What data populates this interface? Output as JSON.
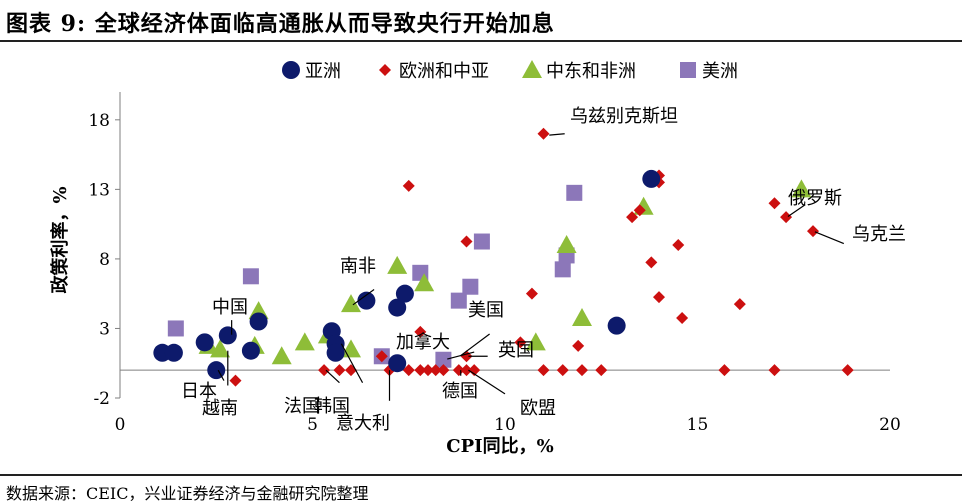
{
  "header": {
    "title": "图表 9:  全球经济体面临高通胀从而导致央行开始加息"
  },
  "footer": {
    "source": "数据来源：CEIC，兴业证券经济与金融研究院整理"
  },
  "chart_data": {
    "type": "scatter",
    "xlabel": "CPI同比，%",
    "ylabel": "政策利率，%",
    "xlim": [
      0,
      20
    ],
    "ylim": [
      -2,
      20
    ],
    "xticks": [
      0,
      5,
      10,
      15,
      20
    ],
    "yticks": [
      -2,
      3,
      8,
      13,
      18
    ],
    "legend_position": "top",
    "series": [
      {
        "name": "亚洲",
        "marker": "circle",
        "color": "#0d1a6b",
        "points": [
          {
            "x": 1.1,
            "y": 1.25
          },
          {
            "x": 1.4,
            "y": 1.25
          },
          {
            "x": 2.2,
            "y": 2.0
          },
          {
            "x": 2.8,
            "y": 2.5
          },
          {
            "x": 2.5,
            "y": 0.0
          },
          {
            "x": 3.4,
            "y": 1.4
          },
          {
            "x": 3.6,
            "y": 3.5
          },
          {
            "x": 5.5,
            "y": 2.8
          },
          {
            "x": 5.6,
            "y": 1.9
          },
          {
            "x": 5.6,
            "y": 1.25
          },
          {
            "x": 6.4,
            "y": 5.0
          },
          {
            "x": 7.2,
            "y": 4.5
          },
          {
            "x": 7.4,
            "y": 5.5
          },
          {
            "x": 7.2,
            "y": 0.5
          },
          {
            "x": 12.9,
            "y": 3.2
          },
          {
            "x": 13.8,
            "y": 13.75
          }
        ]
      },
      {
        "name": "欧洲和中亚",
        "marker": "diamond",
        "color": "#cc1010",
        "points": [
          {
            "x": 11.0,
            "y": 17.0
          },
          {
            "x": 7.5,
            "y": 13.25
          },
          {
            "x": 14.0,
            "y": 14.0
          },
          {
            "x": 14.0,
            "y": 13.5
          },
          {
            "x": 13.3,
            "y": 11.0
          },
          {
            "x": 13.5,
            "y": 11.5
          },
          {
            "x": 17.0,
            "y": 12.0
          },
          {
            "x": 17.3,
            "y": 11.0
          },
          {
            "x": 18.0,
            "y": 10.0
          },
          {
            "x": 14.5,
            "y": 9.0
          },
          {
            "x": 13.8,
            "y": 7.75
          },
          {
            "x": 9.0,
            "y": 9.25
          },
          {
            "x": 10.7,
            "y": 5.5
          },
          {
            "x": 14.0,
            "y": 5.25
          },
          {
            "x": 16.1,
            "y": 4.75
          },
          {
            "x": 14.6,
            "y": 3.75
          },
          {
            "x": 7.8,
            "y": 2.75
          },
          {
            "x": 10.4,
            "y": 2.0
          },
          {
            "x": 11.9,
            "y": 1.75
          },
          {
            "x": 12.0,
            "y": 0.0
          },
          {
            "x": 11.5,
            "y": 0.0
          },
          {
            "x": 11.0,
            "y": 0.0
          },
          {
            "x": 12.5,
            "y": 0.0
          },
          {
            "x": 7.0,
            "y": 0.0
          },
          {
            "x": 7.5,
            "y": 0.0
          },
          {
            "x": 7.8,
            "y": 0.0
          },
          {
            "x": 8.0,
            "y": 0.0
          },
          {
            "x": 8.2,
            "y": 0.0
          },
          {
            "x": 8.4,
            "y": 0.0
          },
          {
            "x": 8.8,
            "y": 0.0
          },
          {
            "x": 9.0,
            "y": 0.0
          },
          {
            "x": 9.2,
            "y": 0.0
          },
          {
            "x": 15.7,
            "y": 0.0
          },
          {
            "x": 17.0,
            "y": 0.0
          },
          {
            "x": 18.9,
            "y": 0.0
          },
          {
            "x": 5.3,
            "y": 0.0
          },
          {
            "x": 5.7,
            "y": 0.0
          },
          {
            "x": 6.0,
            "y": 0.0
          },
          {
            "x": 6.8,
            "y": 1.0
          },
          {
            "x": 9.0,
            "y": 1.0
          },
          {
            "x": 3.0,
            "y": -0.75
          }
        ]
      },
      {
        "name": "中东和非洲",
        "marker": "triangle",
        "color": "#8ebd38",
        "points": [
          {
            "x": 17.7,
            "y": 13.0
          },
          {
            "x": 13.6,
            "y": 11.75
          },
          {
            "x": 11.6,
            "y": 9.0
          },
          {
            "x": 7.2,
            "y": 7.5
          },
          {
            "x": 7.9,
            "y": 6.25
          },
          {
            "x": 6.0,
            "y": 4.75
          },
          {
            "x": 3.6,
            "y": 4.25
          },
          {
            "x": 12.0,
            "y": 3.75
          },
          {
            "x": 5.4,
            "y": 2.5
          },
          {
            "x": 4.8,
            "y": 2.0
          },
          {
            "x": 10.8,
            "y": 2.0
          },
          {
            "x": 3.5,
            "y": 1.75
          },
          {
            "x": 2.3,
            "y": 1.75
          },
          {
            "x": 2.6,
            "y": 1.5
          },
          {
            "x": 6.0,
            "y": 1.5
          },
          {
            "x": 4.2,
            "y": 1.0
          }
        ]
      },
      {
        "name": "美洲",
        "marker": "square",
        "color": "#8c77b9",
        "points": [
          {
            "x": 11.8,
            "y": 12.75
          },
          {
            "x": 9.4,
            "y": 9.25
          },
          {
            "x": 11.6,
            "y": 8.25
          },
          {
            "x": 11.5,
            "y": 7.25
          },
          {
            "x": 3.4,
            "y": 6.75
          },
          {
            "x": 7.8,
            "y": 7.0
          },
          {
            "x": 9.1,
            "y": 6.0
          },
          {
            "x": 8.8,
            "y": 5.0
          },
          {
            "x": 1.45,
            "y": 3.0
          },
          {
            "x": 6.8,
            "y": 1.0
          },
          {
            "x": 8.4,
            "y": 0.75
          }
        ]
      }
    ],
    "annotations": [
      {
        "text": "乌兹别克斯坦",
        "x": 11.0,
        "y": 17.0
      },
      {
        "text": "俄罗斯",
        "x": 17.3,
        "y": 11.0
      },
      {
        "text": "乌克兰",
        "x": 18.0,
        "y": 10.0
      },
      {
        "text": "南非",
        "x": 6.0,
        "y": 4.75
      },
      {
        "text": "中国",
        "x": 2.8,
        "y": 2.5
      },
      {
        "text": "日本",
        "x": 2.5,
        "y": 0.0
      },
      {
        "text": "越南",
        "x": 2.8,
        "y": 1.4
      },
      {
        "text": "法国",
        "x": 5.3,
        "y": 0.0
      },
      {
        "text": "韩国",
        "x": 5.7,
        "y": 1.9
      },
      {
        "text": "意大利",
        "x": 7.0,
        "y": 0.0
      },
      {
        "text": "美国",
        "x": 8.8,
        "y": 1.0
      },
      {
        "text": "加拿大",
        "x": 8.5,
        "y": 0.75
      },
      {
        "text": "英国",
        "x": 9.0,
        "y": 1.0
      },
      {
        "text": "德国",
        "x": 8.8,
        "y": 0.0
      },
      {
        "text": "欧盟",
        "x": 9.0,
        "y": 0.0
      }
    ]
  }
}
